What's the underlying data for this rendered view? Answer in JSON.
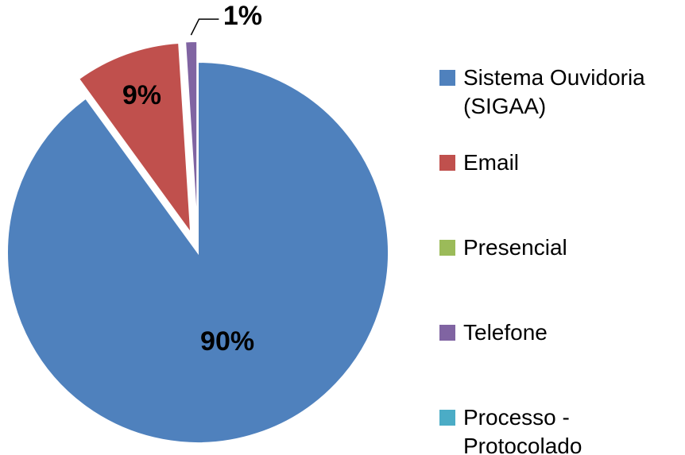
{
  "chart_data": {
    "type": "pie",
    "categories": [
      "Sistema Ouvidoria (SIGAA)",
      "Email",
      "Presencial",
      "Telefone",
      "Processo - Protocolado"
    ],
    "values": [
      90,
      9,
      0,
      1,
      0
    ],
    "value_labels": [
      "90%",
      "9%",
      null,
      "1%",
      null
    ],
    "colors": [
      "#4f81bd",
      "#c0504d",
      "#9bbb59",
      "#8064a2",
      "#4bacc6"
    ],
    "legend": "right"
  }
}
